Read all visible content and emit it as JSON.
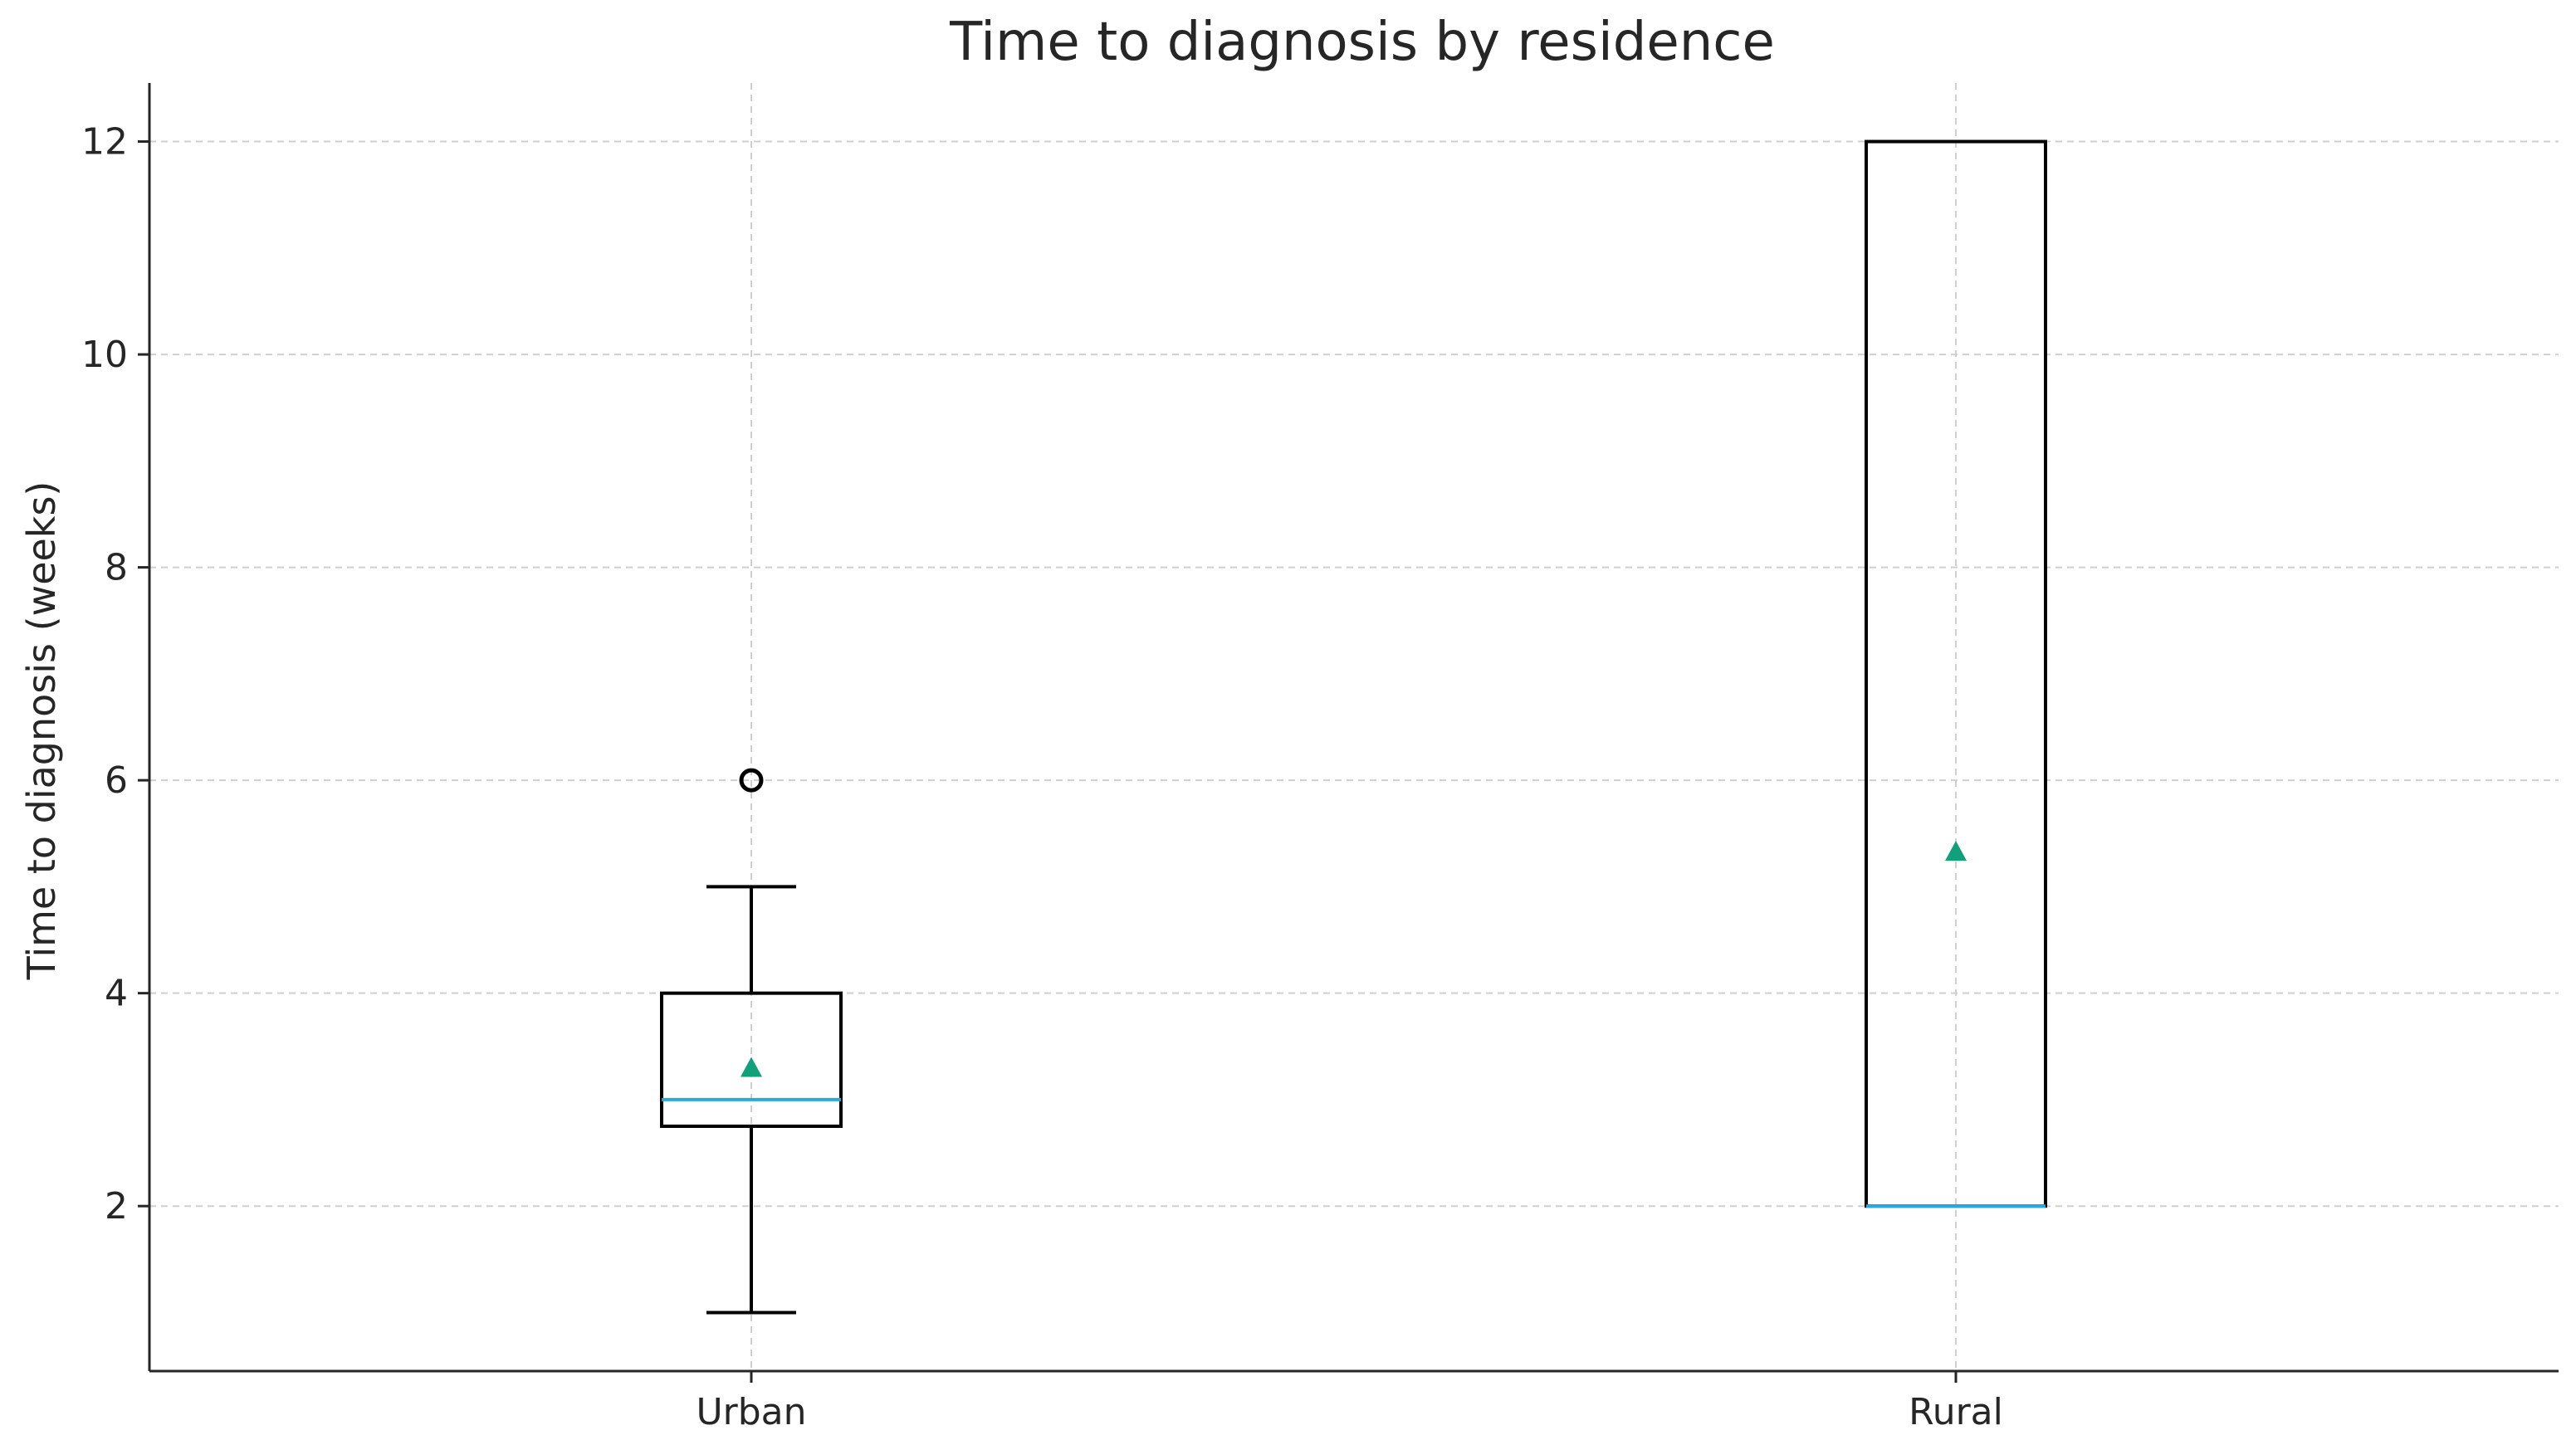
{
  "chart_data": {
    "type": "boxplot",
    "title": "Time to diagnosis by residence",
    "xlabel": "",
    "ylabel": "Time to diagnosis (weeks)",
    "ylim": [
      0.45,
      12.55
    ],
    "yticks": [
      2,
      4,
      6,
      8,
      10,
      12
    ],
    "categories": [
      "Urban",
      "Rural"
    ],
    "boxes": [
      {
        "category": "Urban",
        "whisker_low": 1,
        "q1": 2.75,
        "median": 3,
        "q3": 4,
        "whisker_high": 5,
        "mean": 3.3,
        "outliers": [
          6
        ]
      },
      {
        "category": "Rural",
        "whisker_low": 2,
        "q1": 2,
        "median": 2,
        "q3": 12,
        "whisker_high": 12,
        "mean": 5.33,
        "outliers": []
      }
    ],
    "grid": true,
    "colors": {
      "median": "#2aa8e0",
      "mean": "#10a07a",
      "box": "#000000",
      "grid": "#cfcfcf"
    }
  }
}
